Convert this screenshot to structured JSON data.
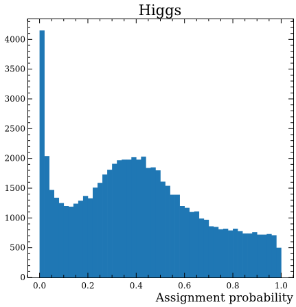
{
  "chart_data": {
    "type": "bar",
    "title": "Higgs",
    "xlabel": "Assignment probability",
    "ylabel": "",
    "xlim": [
      -0.05,
      1.05
    ],
    "ylim": [
      0,
      4350
    ],
    "xticks": [
      "0.0",
      "0.2",
      "0.4",
      "0.6",
      "0.8",
      "1.0"
    ],
    "yticks": [
      "0",
      "500",
      "1000",
      "1500",
      "2000",
      "2500",
      "3000",
      "3500",
      "4000"
    ],
    "bin_width": 0.02,
    "bin_starts": [
      0.0,
      0.02,
      0.04,
      0.06,
      0.08,
      0.1,
      0.12,
      0.14,
      0.16,
      0.18,
      0.2,
      0.22,
      0.24,
      0.26,
      0.28,
      0.3,
      0.32,
      0.34,
      0.36,
      0.38,
      0.4,
      0.42,
      0.44,
      0.46,
      0.48,
      0.5,
      0.52,
      0.54,
      0.56,
      0.58,
      0.6,
      0.62,
      0.64,
      0.66,
      0.68,
      0.7,
      0.72,
      0.74,
      0.76,
      0.78,
      0.8,
      0.82,
      0.84,
      0.86,
      0.88,
      0.9,
      0.92,
      0.94,
      0.96,
      0.98
    ],
    "values": [
      4150,
      2040,
      1470,
      1340,
      1250,
      1200,
      1190,
      1240,
      1290,
      1370,
      1330,
      1510,
      1590,
      1730,
      1810,
      1910,
      1970,
      1980,
      1980,
      2020,
      1980,
      2030,
      1840,
      1850,
      1800,
      1610,
      1540,
      1390,
      1390,
      1200,
      1170,
      1100,
      1110,
      990,
      970,
      860,
      850,
      810,
      820,
      790,
      820,
      780,
      740,
      740,
      760,
      720,
      720,
      730,
      710,
      500
    ],
    "color": "#1f77b4"
  }
}
